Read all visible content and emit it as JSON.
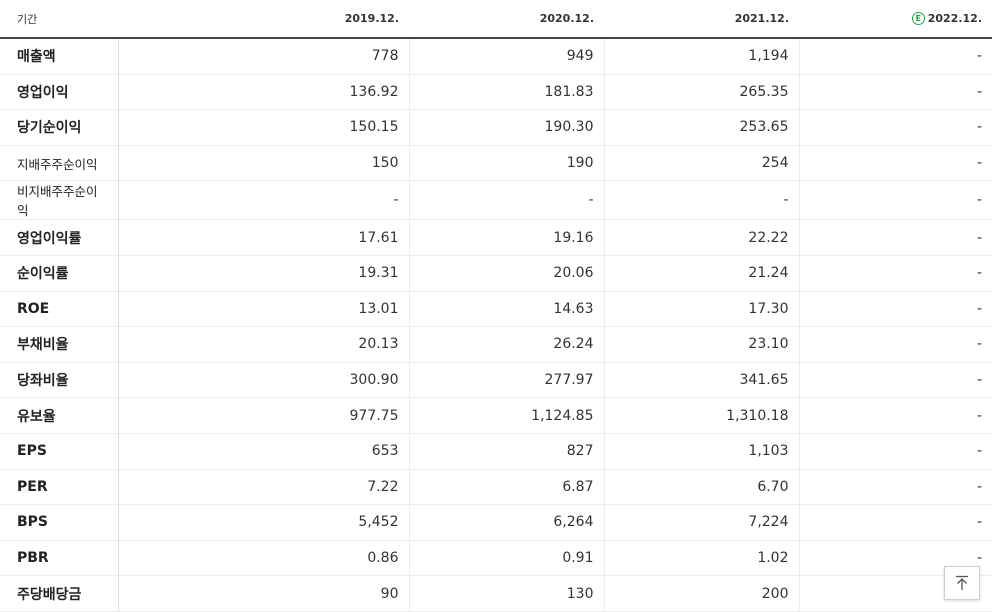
{
  "header": {
    "label": "기간",
    "periods": [
      "2019.12.",
      "2020.12.",
      "2021.12.",
      "2022.12."
    ],
    "estimate_badge": "E"
  },
  "rows": [
    {
      "label": "매출액",
      "values": [
        "778",
        "949",
        "1,194",
        "-"
      ]
    },
    {
      "label": "영업이익",
      "values": [
        "136.92",
        "181.83",
        "265.35",
        "-"
      ]
    },
    {
      "label": "당기순이익",
      "values": [
        "150.15",
        "190.30",
        "253.65",
        "-"
      ]
    },
    {
      "label": "지배주주순이익",
      "values": [
        "150",
        "190",
        "254",
        "-"
      ]
    },
    {
      "label": "비지배주주순이익",
      "values": [
        "-",
        "-",
        "-",
        "-"
      ]
    },
    {
      "label": "영업이익률",
      "values": [
        "17.61",
        "19.16",
        "22.22",
        "-"
      ]
    },
    {
      "label": "순이익률",
      "values": [
        "19.31",
        "20.06",
        "21.24",
        "-"
      ]
    },
    {
      "label": "ROE",
      "values": [
        "13.01",
        "14.63",
        "17.30",
        "-"
      ]
    },
    {
      "label": "부채비율",
      "values": [
        "20.13",
        "26.24",
        "23.10",
        "-"
      ]
    },
    {
      "label": "당좌비율",
      "values": [
        "300.90",
        "277.97",
        "341.65",
        "-"
      ]
    },
    {
      "label": "유보율",
      "values": [
        "977.75",
        "1,124.85",
        "1,310.18",
        "-"
      ]
    },
    {
      "label": "EPS",
      "values": [
        "653",
        "827",
        "1,103",
        "-"
      ]
    },
    {
      "label": "PER",
      "values": [
        "7.22",
        "6.87",
        "6.70",
        "-"
      ]
    },
    {
      "label": "BPS",
      "values": [
        "5,452",
        "6,264",
        "7,224",
        "-"
      ]
    },
    {
      "label": "PBR",
      "values": [
        "0.86",
        "0.91",
        "1.02",
        "-"
      ]
    },
    {
      "label": "주당배당금",
      "values": [
        "90",
        "130",
        "200",
        ""
      ]
    }
  ],
  "top_button_icon": "arrow-up-to-top-icon"
}
